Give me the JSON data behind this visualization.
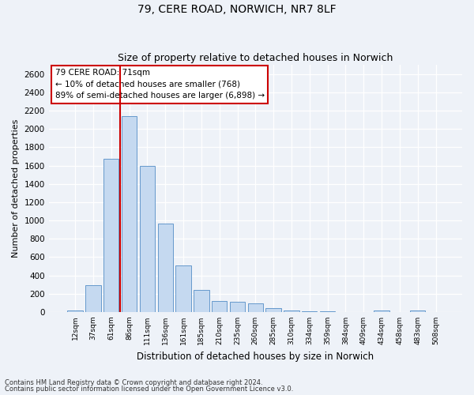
{
  "title1": "79, CERE ROAD, NORWICH, NR7 8LF",
  "title2": "Size of property relative to detached houses in Norwich",
  "xlabel": "Distribution of detached houses by size in Norwich",
  "ylabel": "Number of detached properties",
  "categories": [
    "12sqm",
    "37sqm",
    "61sqm",
    "86sqm",
    "111sqm",
    "136sqm",
    "161sqm",
    "185sqm",
    "210sqm",
    "235sqm",
    "260sqm",
    "285sqm",
    "310sqm",
    "334sqm",
    "359sqm",
    "384sqm",
    "409sqm",
    "434sqm",
    "458sqm",
    "483sqm",
    "508sqm"
  ],
  "values": [
    15,
    295,
    1670,
    2140,
    1595,
    965,
    505,
    245,
    120,
    108,
    93,
    43,
    18,
    7,
    5,
    3,
    2,
    14,
    2,
    14,
    2
  ],
  "bar_color": "#c5d9f0",
  "bar_edge_color": "#6699cc",
  "vline_color": "#cc0000",
  "vline_pos": 2.48,
  "ylim": [
    0,
    2700
  ],
  "yticks": [
    0,
    200,
    400,
    600,
    800,
    1000,
    1200,
    1400,
    1600,
    1800,
    2000,
    2200,
    2400,
    2600
  ],
  "annotation_text": "79 CERE ROAD: 71sqm\n← 10% of detached houses are smaller (768)\n89% of semi-detached houses are larger (6,898) →",
  "annotation_box_color": "white",
  "annotation_box_edge_color": "#cc0000",
  "footer1": "Contains HM Land Registry data © Crown copyright and database right 2024.",
  "footer2": "Contains public sector information licensed under the Open Government Licence v3.0.",
  "bg_color": "#eef2f8",
  "plot_bg_color": "#eef2f8",
  "grid_color": "white",
  "title_fontsize": 10,
  "subtitle_fontsize": 9,
  "bar_width": 0.85
}
